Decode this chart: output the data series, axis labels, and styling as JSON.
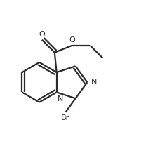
{
  "background_color": "#ffffff",
  "line_color": "#2a2a2a",
  "line_width": 1.6,
  "text_color": "#2a2a2a",
  "label_N_imidazole": "N",
  "label_N_bridgehead": "N",
  "label_O_carbonyl": "O",
  "label_O_ether": "O",
  "label_Br": "Br",
  "figsize": [
    2.18,
    2.08
  ],
  "dpi": 100
}
